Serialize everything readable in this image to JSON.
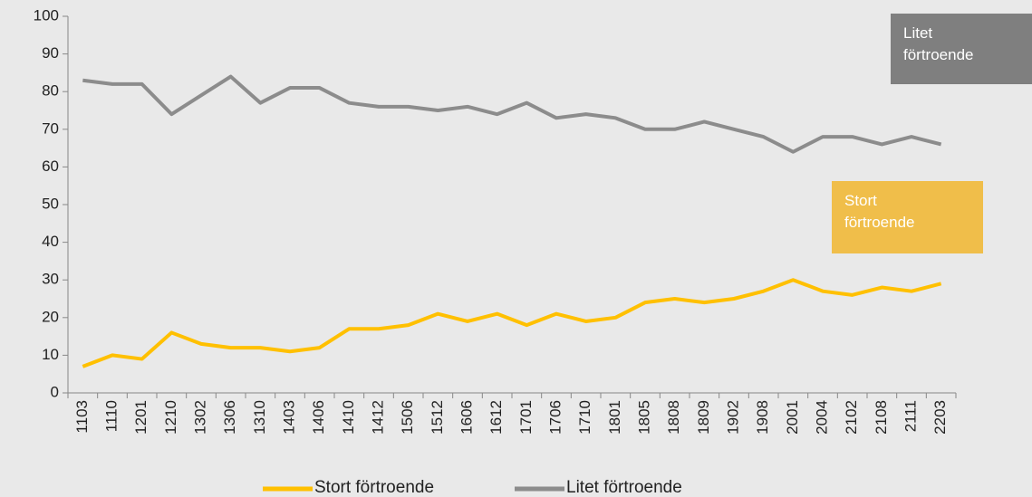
{
  "chart_data": {
    "type": "line",
    "categories": [
      "1103",
      "1110",
      "1201",
      "1210",
      "1302",
      "1306",
      "1310",
      "1403",
      "1406",
      "1410",
      "1412",
      "1506",
      "1512",
      "1606",
      "1612",
      "1701",
      "1706",
      "1710",
      "1801",
      "1805",
      "1808",
      "1809",
      "1902",
      "1908",
      "2001",
      "2004",
      "2102",
      "2108",
      "2111",
      "2203"
    ],
    "series": [
      {
        "name": "Stort förtroende",
        "color": "#ffc000",
        "values": [
          7,
          10,
          9,
          16,
          13,
          12,
          12,
          11,
          12,
          17,
          17,
          18,
          21,
          19,
          21,
          18,
          21,
          19,
          20,
          24,
          25,
          24,
          25,
          27,
          30,
          27,
          26,
          28,
          27,
          29
        ]
      },
      {
        "name": "Litet förtroende",
        "color": "#8c8c8c",
        "values": [
          83,
          82,
          82,
          74,
          79,
          84,
          77,
          81,
          81,
          77,
          76,
          76,
          75,
          76,
          74,
          77,
          73,
          74,
          73,
          70,
          70,
          72,
          70,
          68,
          64,
          68,
          68,
          66,
          68,
          66
        ]
      }
    ],
    "annotations": [
      {
        "text": "Litet förtroende",
        "color": "#7f7f7f"
      },
      {
        "text": "Stort förtroende",
        "color": "#f0be4a"
      }
    ],
    "ylim": [
      0,
      100
    ],
    "yticks": [
      0,
      10,
      20,
      30,
      40,
      50,
      60,
      70,
      80,
      90,
      100
    ],
    "grid": false,
    "legend": "bottom"
  }
}
